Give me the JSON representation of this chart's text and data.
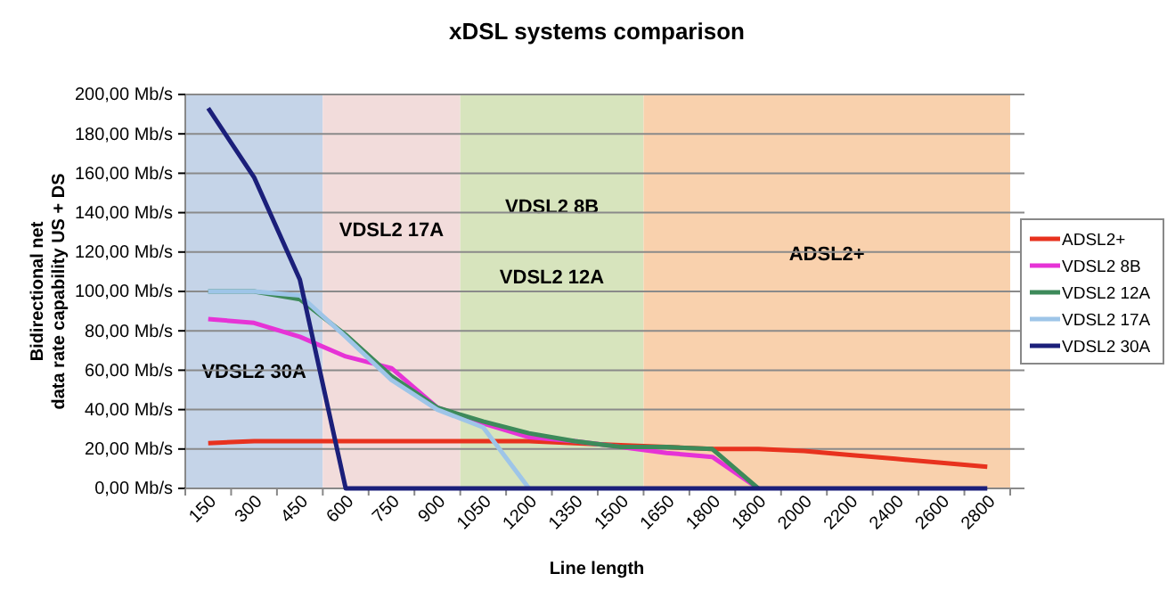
{
  "chart_data": {
    "type": "line",
    "title": "xDSL systems comparison",
    "xlabel": "Line length",
    "ylabel": "Bidirectional net\ndata rate capability US + DS",
    "categories": [
      "150",
      "300",
      "450",
      "600",
      "750",
      "900",
      "1050",
      "1200",
      "1350",
      "1500",
      "1650",
      "1800",
      "1800",
      "2000",
      "2200",
      "2400",
      "2600",
      "2800"
    ],
    "series": [
      {
        "name": "ADSL2+",
        "color": "#e8321e",
        "values": [
          23,
          24,
          24,
          24,
          24,
          24,
          24,
          24,
          23,
          22,
          21,
          20,
          20,
          19,
          17,
          15,
          13,
          11
        ]
      },
      {
        "name": "VDSL2 8B",
        "color": "#e633d6",
        "values": [
          86,
          84,
          77,
          67,
          61,
          41,
          33,
          26,
          24,
          21,
          18,
          16,
          0,
          null,
          null,
          null,
          null,
          null
        ]
      },
      {
        "name": "VDSL2 12A",
        "color": "#3d8a5a",
        "values": [
          100,
          100,
          96,
          78,
          57,
          41,
          34,
          28,
          24,
          21,
          21,
          20,
          0,
          null,
          null,
          null,
          null,
          null
        ]
      },
      {
        "name": "VDSL2 17A",
        "color": "#9ec5e8",
        "values": [
          100,
          100,
          98,
          77,
          55,
          40,
          31,
          0,
          null,
          null,
          null,
          null,
          null,
          null,
          null,
          null,
          null,
          null
        ]
      },
      {
        "name": "VDSL2 30A",
        "color": "#1b1f7a",
        "values": [
          193,
          158,
          106,
          0,
          0,
          0,
          0,
          0,
          0,
          0,
          0,
          0,
          0,
          0,
          0,
          0,
          0,
          0
        ]
      }
    ],
    "bands": [
      {
        "axis": "x",
        "from": "150",
        "to": "450",
        "label": "VDSL2 30A",
        "color": "#c5d4e8"
      },
      {
        "axis": "x",
        "from": "600",
        "to": "900",
        "label": "VDSL2 17A",
        "color": "#f2dcdb"
      },
      {
        "axis": "x",
        "from": "1050",
        "to": "1500",
        "label": "VDSL2 8B",
        "color": "#d7e4bd"
      },
      {
        "axis": "x",
        "from": "1650",
        "to": "2800",
        "label": "ADSL2+",
        "color": "#f9d1ad"
      }
    ],
    "annotations": [
      "VDSL2 12A"
    ],
    "ylim": [
      0,
      200
    ],
    "yticks": [
      {
        "value": 0,
        "label": "0,00 Mb/s"
      },
      {
        "value": 20,
        "label": "20,00 Mb/s"
      },
      {
        "value": 40,
        "label": "40,00 Mb/s"
      },
      {
        "value": 60,
        "label": "60,00 Mb/s"
      },
      {
        "value": 80,
        "label": "80,00 Mb/s"
      },
      {
        "value": 100,
        "label": "100,00 Mb/s"
      },
      {
        "value": 120,
        "label": "120,00 Mb/s"
      },
      {
        "value": 140,
        "label": "140,00 Mb/s"
      },
      {
        "value": 160,
        "label": "160,00 Mb/s"
      },
      {
        "value": 180,
        "label": "180,00 Mb/s"
      },
      {
        "value": 200,
        "label": "200,00 Mb/s"
      }
    ],
    "grid": "y",
    "legend": "right",
    "marker": "none",
    "line_style": "solid"
  }
}
